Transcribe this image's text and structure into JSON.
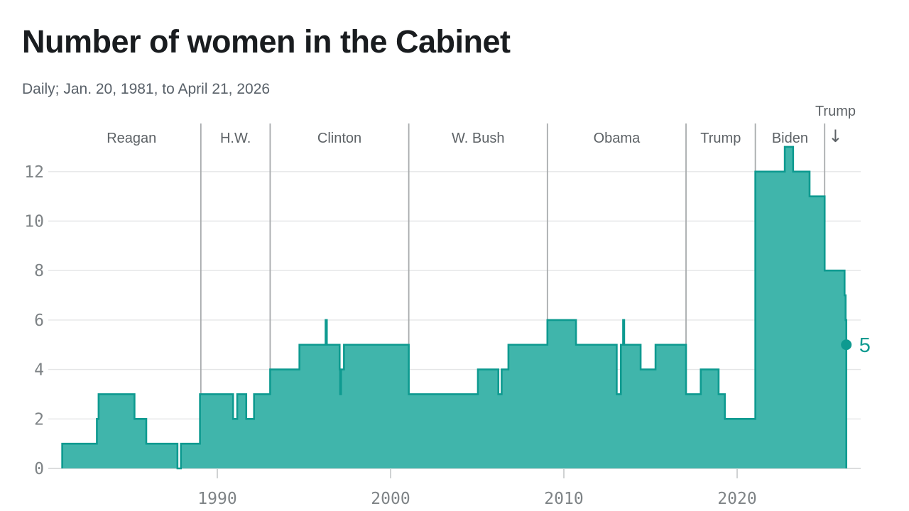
{
  "header": {
    "title": "Number of women in the Cabinet",
    "subtitle": "Daily; Jan. 20, 1981, to April 21, 2026"
  },
  "colors": {
    "area_fill": "#40b5ab",
    "area_stroke": "#0e9a90",
    "grid_h": "#e5e6e7",
    "baseline": "#d0d2d3",
    "tick_mark": "#d0d2d3",
    "divider_v": "#a8abad",
    "axis_text": "#7e8386",
    "president_text": "#5d6266",
    "end_accent": "#0e9a90",
    "background": "#ffffff"
  },
  "chart_data": {
    "type": "area",
    "style": "step-after",
    "title": "Number of women in the Cabinet",
    "subtitle": "Daily; Jan. 20, 1981, to April 21, 2026",
    "xlabel": "",
    "ylabel": "",
    "x_domain": [
      1981.05,
      2027.1
    ],
    "ylim": [
      0,
      13.5
    ],
    "grid": "horizontal",
    "x_ticks": [
      1990,
      2000,
      2010,
      2020
    ],
    "y_ticks": [
      0,
      2,
      4,
      6,
      8,
      10,
      12
    ],
    "steps": [
      {
        "x": 1981.05,
        "y": 1
      },
      {
        "x": 1983.05,
        "y": 2
      },
      {
        "x": 1983.15,
        "y": 3
      },
      {
        "x": 1985.22,
        "y": 2
      },
      {
        "x": 1985.9,
        "y": 1
      },
      {
        "x": 1987.7,
        "y": 0
      },
      {
        "x": 1987.9,
        "y": 1
      },
      {
        "x": 1989.0,
        "y": 3
      },
      {
        "x": 1990.91,
        "y": 2
      },
      {
        "x": 1991.15,
        "y": 3
      },
      {
        "x": 1991.67,
        "y": 2
      },
      {
        "x": 1992.12,
        "y": 3
      },
      {
        "x": 1993.05,
        "y": 4
      },
      {
        "x": 1994.74,
        "y": 5
      },
      {
        "x": 1996.25,
        "y": 6
      },
      {
        "x": 1996.32,
        "y": 5
      },
      {
        "x": 1997.06,
        "y": 4
      },
      {
        "x": 1997.09,
        "y": 3
      },
      {
        "x": 1997.14,
        "y": 4
      },
      {
        "x": 1997.31,
        "y": 5
      },
      {
        "x": 2001.05,
        "y": 3
      },
      {
        "x": 2005.04,
        "y": 4
      },
      {
        "x": 2006.22,
        "y": 3
      },
      {
        "x": 2006.41,
        "y": 4
      },
      {
        "x": 2006.8,
        "y": 5
      },
      {
        "x": 2009.05,
        "y": 6
      },
      {
        "x": 2010.7,
        "y": 5
      },
      {
        "x": 2013.05,
        "y": 3
      },
      {
        "x": 2013.29,
        "y": 5
      },
      {
        "x": 2013.42,
        "y": 6
      },
      {
        "x": 2013.48,
        "y": 5
      },
      {
        "x": 2014.43,
        "y": 4
      },
      {
        "x": 2015.29,
        "y": 5
      },
      {
        "x": 2017.05,
        "y": 3
      },
      {
        "x": 2017.9,
        "y": 4
      },
      {
        "x": 2018.93,
        "y": 3
      },
      {
        "x": 2019.29,
        "y": 2
      },
      {
        "x": 2021.05,
        "y": 12
      },
      {
        "x": 2022.75,
        "y": 13
      },
      {
        "x": 2023.23,
        "y": 12
      },
      {
        "x": 2024.18,
        "y": 11
      },
      {
        "x": 2025.05,
        "y": 8
      },
      {
        "x": 2026.2,
        "y": 7
      },
      {
        "x": 2026.26,
        "y": 6
      },
      {
        "x": 2026.3,
        "y": 5
      }
    ],
    "end_point": {
      "x": 2026.3,
      "y": 5,
      "label": "5"
    },
    "presidents": [
      {
        "label": "Reagan",
        "start": 1981.05,
        "end": 1989.05,
        "label_above": false
      },
      {
        "label": "H.W.",
        "start": 1989.05,
        "end": 1993.05,
        "label_above": false
      },
      {
        "label": "Clinton",
        "start": 1993.05,
        "end": 2001.05,
        "label_above": false
      },
      {
        "label": "W. Bush",
        "start": 2001.05,
        "end": 2009.05,
        "label_above": false
      },
      {
        "label": "Obama",
        "start": 2009.05,
        "end": 2017.05,
        "label_above": false
      },
      {
        "label": "Trump",
        "start": 2017.05,
        "end": 2021.05,
        "label_above": false
      },
      {
        "label": "Biden",
        "start": 2021.05,
        "end": 2025.05,
        "label_above": false
      },
      {
        "label": "Trump",
        "start": 2025.05,
        "end": 2026.3,
        "label_above": true,
        "arrow_icon": "↓"
      }
    ]
  }
}
